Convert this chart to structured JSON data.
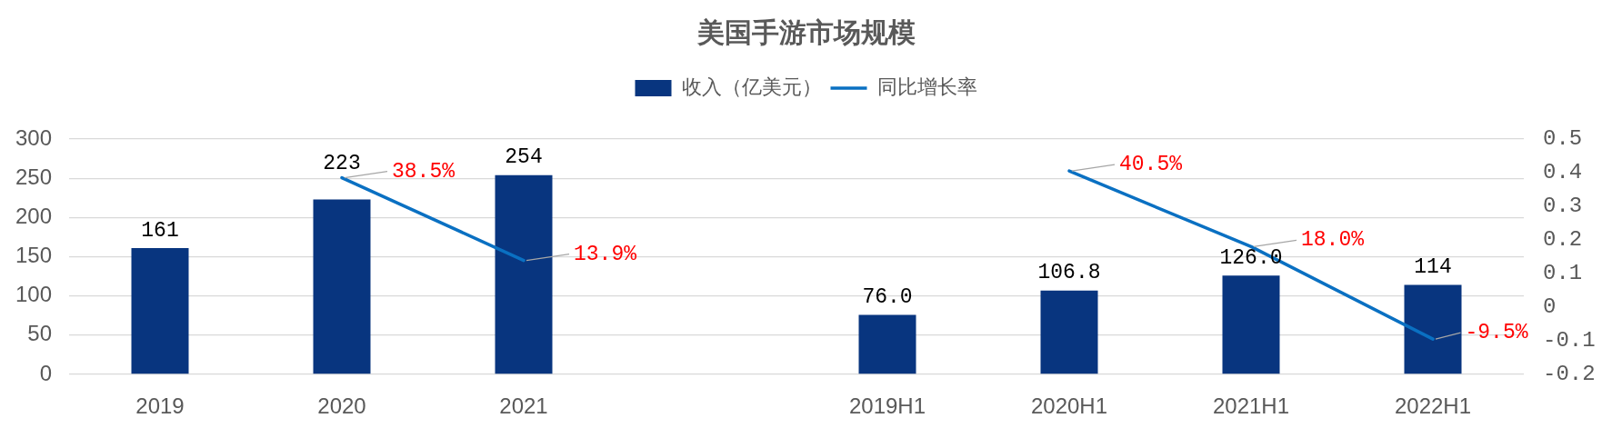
{
  "chart_data": {
    "type": "bar",
    "title": "美国手游市场规模",
    "categories": [
      "2019",
      "2020",
      "2021",
      null,
      "2019H1",
      "2020H1",
      "2021H1",
      "2022H1"
    ],
    "series": [
      {
        "name": "收入（亿美元）",
        "color": "#08357f",
        "values": [
          161,
          223,
          254,
          null,
          76.0,
          106.8,
          126.0,
          114
        ],
        "value_labels": [
          "161",
          "223",
          "254",
          null,
          "76.0",
          "106.8",
          "126.0",
          "114"
        ]
      },
      {
        "name": "同比增长率",
        "type": "line",
        "axis": "y2",
        "color": "#0a70c2",
        "values": [
          null,
          0.385,
          0.139,
          null,
          null,
          0.405,
          0.18,
          -0.095
        ],
        "value_labels": [
          null,
          "38.5%",
          "13.9%",
          null,
          null,
          "40.5%",
          "18.0%",
          "-9.5%"
        ]
      }
    ],
    "ylim": [
      0,
      300
    ],
    "yticks": [
      0,
      50,
      100,
      150,
      200,
      250,
      300
    ],
    "y2lim": [
      -0.2,
      0.5
    ],
    "y2ticks": [
      -0.2,
      -0.1,
      0,
      0.1,
      0.2,
      0.3,
      0.4,
      0.5
    ],
    "grid": "y",
    "legend": "top",
    "marker": "none"
  }
}
